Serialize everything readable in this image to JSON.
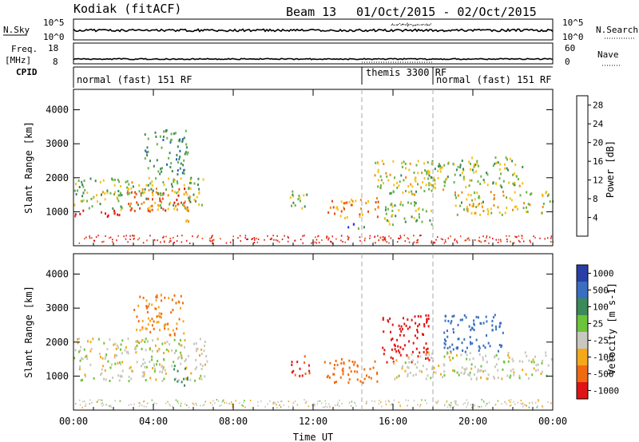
{
  "header": {
    "station": "Kodiak (fitACF)",
    "beam": "Beam 13",
    "dates": "01/Oct/2015 - 02/Oct/2015"
  },
  "noise_panel": {
    "left_label": "N.Sky",
    "right_label": "N.Search",
    "left_ticks": [
      "10^5",
      "10^0"
    ],
    "right_ticks": [
      "10^5",
      "10^0"
    ]
  },
  "freq_panel": {
    "left_label_1": "Freq.",
    "left_label_2": "[MHz]",
    "right_label": "Nave",
    "left_ticks": [
      "18",
      "8"
    ],
    "right_ticks": [
      "60",
      "0"
    ]
  },
  "cpid": {
    "label": "CPID",
    "segments": [
      {
        "name": "normal (fast) 151 RF",
        "start": 0,
        "end": 14.6
      },
      {
        "name": "themis 3300 RF",
        "start": 14.6,
        "end": 18.0
      },
      {
        "name": "normal (fast) 151 RF",
        "start": 18.0,
        "end": 24
      }
    ]
  },
  "chart_data": [
    {
      "type": "heatmap",
      "title": "",
      "xlabel": "Time UT",
      "ylabel": "Slant Range [km]",
      "xlim": [
        0,
        24
      ],
      "ylim": [
        0,
        4600
      ],
      "x_ticks": [
        "00:00",
        "04:00",
        "08:00",
        "12:00",
        "16:00",
        "20:00",
        "00:00"
      ],
      "y_ticks": [
        "1000",
        "2000",
        "3000",
        "4000"
      ],
      "colorbar": {
        "label": "Power [dB]",
        "ticks": [
          "4",
          "8",
          "12",
          "16",
          "20",
          "24",
          "28"
        ],
        "range": [
          0,
          30
        ],
        "colors": [
          "#1e2cff",
          "#2a5fb5",
          "#3a8a5a",
          "#6bb04a",
          "#f5c21a",
          "#f08a12",
          "#e84a12",
          "#e01414"
        ]
      },
      "regions": [
        {
          "t0": 0.0,
          "t1": 2.5,
          "r0": 850,
          "r1": 1050,
          "value": 28
        },
        {
          "t0": 2.5,
          "t1": 5.8,
          "r0": 1000,
          "r1": 1700,
          "value": 24
        },
        {
          "t0": 0.0,
          "t1": 6.5,
          "r0": 1050,
          "r1": 2000,
          "value": 14
        },
        {
          "t0": 3.5,
          "t1": 5.7,
          "r0": 2100,
          "r1": 3400,
          "value": 10
        },
        {
          "t0": 5.2,
          "t1": 5.8,
          "r0": 700,
          "r1": 1300,
          "value": 18
        },
        {
          "t0": 10.8,
          "t1": 11.8,
          "r0": 1000,
          "r1": 1600,
          "value": 14
        },
        {
          "t0": 12.7,
          "t1": 15.3,
          "r0": 800,
          "r1": 1400,
          "value": 20
        },
        {
          "t0": 13.6,
          "t1": 14.6,
          "r0": 500,
          "r1": 700,
          "value": 8
        },
        {
          "t0": 15.0,
          "t1": 18.5,
          "r0": 1500,
          "r1": 2500,
          "value": 16
        },
        {
          "t0": 15.5,
          "t1": 18.0,
          "r0": 600,
          "r1": 1300,
          "value": 14
        },
        {
          "t0": 17.5,
          "t1": 22.5,
          "r0": 1700,
          "r1": 2600,
          "value": 14
        },
        {
          "t0": 19.0,
          "t1": 24.0,
          "r0": 900,
          "r1": 1600,
          "value": 16
        }
      ]
    },
    {
      "type": "heatmap",
      "title": "",
      "xlabel": "Time UT",
      "ylabel": "Slant Range [km]",
      "xlim": [
        0,
        24
      ],
      "ylim": [
        0,
        4600
      ],
      "x_ticks": [
        "00:00",
        "04:00",
        "08:00",
        "12:00",
        "16:00",
        "20:00",
        "00:00"
      ],
      "y_ticks": [
        "1000",
        "2000",
        "3000",
        "4000"
      ],
      "colorbar": {
        "label": "Velocity [m s-1]",
        "ticks": [
          "1000",
          "500",
          "100",
          "25",
          "-25",
          "-100",
          "-500",
          "-1000"
        ],
        "colors": [
          "#2a3ea8",
          "#3a6ec0",
          "#3a8a5a",
          "#6bc43a",
          "#c8c8c0",
          "#f5a81a",
          "#f06a12",
          "#e01414"
        ]
      },
      "regions": [
        {
          "t0": 0.0,
          "t1": 6.8,
          "r0": 850,
          "r1": 2100,
          "value": 0
        },
        {
          "t0": 3.0,
          "t1": 5.5,
          "r0": 2200,
          "r1": 3400,
          "value": -100
        },
        {
          "t0": 5.0,
          "t1": 5.7,
          "r0": 700,
          "r1": 1300,
          "value": 150
        },
        {
          "t0": 10.8,
          "t1": 11.8,
          "r0": 1000,
          "r1": 1600,
          "value": -500
        },
        {
          "t0": 12.5,
          "t1": 15.3,
          "r0": 800,
          "r1": 1500,
          "value": -300
        },
        {
          "t0": 15.4,
          "t1": 17.8,
          "r0": 1400,
          "r1": 2800,
          "value": -600
        },
        {
          "t0": 18.5,
          "t1": 21.5,
          "r0": 1700,
          "r1": 2800,
          "value": 700
        },
        {
          "t0": 16.0,
          "t1": 24.0,
          "r0": 900,
          "r1": 1700,
          "value": 0
        }
      ]
    }
  ]
}
